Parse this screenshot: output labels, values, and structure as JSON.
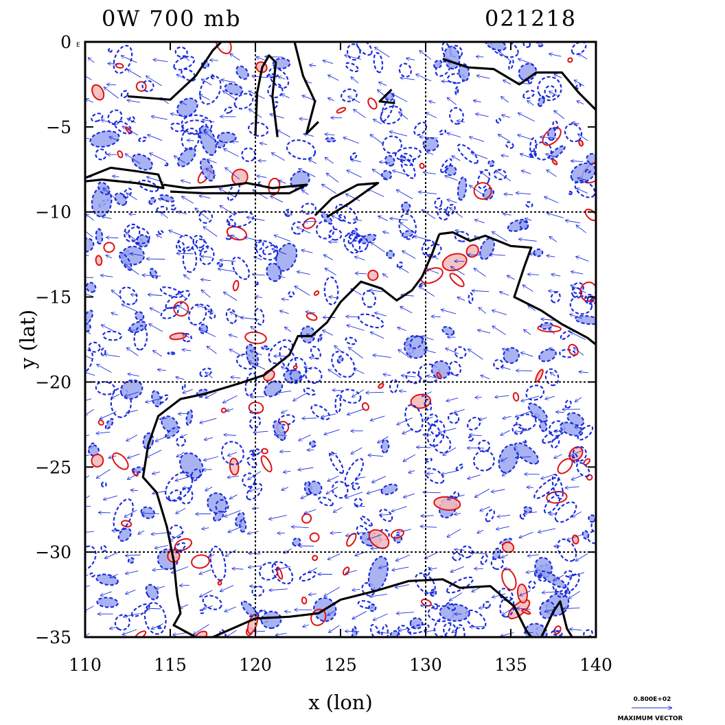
{
  "chart_data": {
    "type": "scatter",
    "title_left": "0W 700 mb",
    "title_right": "021218",
    "xlabel": "x (lon)",
    "ylabel": "y (lat)",
    "xlim": [
      110,
      140
    ],
    "ylim": [
      -35,
      0
    ],
    "x_ticks": [
      "110",
      "115",
      "120",
      "125",
      "130",
      "135",
      "140"
    ],
    "y_ticks": [
      "0",
      "−5",
      "−10",
      "−15",
      "−20",
      "−25",
      "−30",
      "−35"
    ],
    "corner_label": "E",
    "gridlines_x": [
      120,
      130
    ],
    "gridlines_y": [
      -10,
      -20,
      -30
    ],
    "legend": {
      "value": "0.800E+02",
      "caption": "MAXIMUM VECTOR"
    },
    "colors": {
      "coast": "#000000",
      "negative_contour": "#1a2bdb",
      "negative_fill": "#9aa6ee",
      "positive_contour": "#e01010",
      "positive_fill": "#f4b8b8",
      "vector": "#1a2bdb"
    },
    "coastline": [
      [
        [
          110,
          -8.0
        ],
        [
          111.5,
          -7.4
        ],
        [
          113,
          -7.6
        ],
        [
          114.3,
          -7.8
        ],
        [
          114.6,
          -8.6
        ],
        [
          113,
          -8.3
        ],
        [
          111,
          -8.1
        ],
        [
          110,
          -8.2
        ]
      ],
      [
        [
          114.6,
          -8.4
        ],
        [
          116,
          -8.6
        ],
        [
          118,
          -8.5
        ],
        [
          119.5,
          -8.3
        ],
        [
          121,
          -8.6
        ],
        [
          123,
          -8.4
        ],
        [
          122,
          -8.9
        ],
        [
          120,
          -8.9
        ],
        [
          117,
          -8.9
        ],
        [
          115,
          -8.8
        ]
      ],
      [
        [
          123.5,
          -10.2
        ],
        [
          124.5,
          -9.2
        ],
        [
          126,
          -8.4
        ],
        [
          127.2,
          -8.3
        ],
        [
          125.5,
          -9.5
        ],
        [
          124.2,
          -10.3
        ]
      ],
      [
        [
          112.5,
          -3.2
        ],
        [
          115,
          -3.4
        ],
        [
          116.5,
          -2.0
        ],
        [
          117.5,
          -0.5
        ],
        [
          118,
          0.0
        ]
      ],
      [
        [
          120.0,
          -5.5
        ],
        [
          120.1,
          -3.0
        ],
        [
          120.4,
          -1.5
        ],
        [
          120.8,
          -0.8
        ],
        [
          121.2,
          -1.2
        ],
        [
          121.0,
          -3.2
        ],
        [
          121.3,
          -5.6
        ]
      ],
      [
        [
          122.3,
          0.0
        ],
        [
          122.8,
          -2.0
        ],
        [
          123.5,
          -3.5
        ],
        [
          123.0,
          -5.4
        ],
        [
          123.7,
          -4.7
        ]
      ],
      [
        [
          128.0,
          -2.8
        ],
        [
          127.3,
          -3.5
        ],
        [
          128.2,
          -3.6
        ]
      ],
      [
        [
          131,
          -1.0
        ],
        [
          132.5,
          -1.5
        ],
        [
          134,
          -1.6
        ],
        [
          135.5,
          -2.5
        ],
        [
          136.5,
          -1.8
        ],
        [
          138,
          -1.8
        ],
        [
          139,
          -3.0
        ],
        [
          140,
          -4.0
        ]
      ],
      [
        [
          130.8,
          -11.3
        ],
        [
          131.6,
          -11.2
        ],
        [
          132.6,
          -11.7
        ],
        [
          133.5,
          -11.4
        ],
        [
          135,
          -12.0
        ],
        [
          136.2,
          -12.1
        ],
        [
          135.8,
          -13.2
        ],
        [
          135.2,
          -15.0
        ],
        [
          136.8,
          -15.8
        ],
        [
          138,
          -16.6
        ],
        [
          139.5,
          -17.4
        ],
        [
          140,
          -17.8
        ]
      ],
      [
        [
          129.2,
          -14.6
        ],
        [
          129.8,
          -13.8
        ],
        [
          130.4,
          -12.4
        ],
        [
          130.8,
          -11.3
        ]
      ],
      [
        [
          129.2,
          -14.6
        ],
        [
          128.3,
          -15.2
        ],
        [
          127.4,
          -14.5
        ],
        [
          126.2,
          -14.1
        ],
        [
          125,
          -15.3
        ],
        [
          124.2,
          -16.5
        ],
        [
          123.3,
          -17.3
        ],
        [
          122.5,
          -17.3
        ],
        [
          122,
          -18.4
        ],
        [
          120.5,
          -19.6
        ],
        [
          119,
          -20.1
        ],
        [
          117,
          -20.7
        ],
        [
          115.6,
          -21.0
        ],
        [
          114.3,
          -22.0
        ],
        [
          113.7,
          -23.7
        ],
        [
          113.4,
          -25.6
        ],
        [
          114.2,
          -26.5
        ],
        [
          114.8,
          -28.5
        ],
        [
          115.2,
          -30.5
        ],
        [
          115.4,
          -32.5
        ],
        [
          115.6,
          -33.6
        ],
        [
          115.2,
          -34.3
        ],
        [
          116.5,
          -35.0
        ]
      ],
      [
        [
          117.5,
          -35.0
        ],
        [
          120,
          -33.9
        ],
        [
          122,
          -33.8
        ],
        [
          123.7,
          -33.6
        ],
        [
          125,
          -32.8
        ],
        [
          127,
          -32.3
        ],
        [
          129,
          -31.7
        ],
        [
          131,
          -31.6
        ],
        [
          132,
          -32.1
        ],
        [
          133.8,
          -32.0
        ],
        [
          135.2,
          -33.2
        ],
        [
          135.9,
          -34.6
        ],
        [
          136.2,
          -35.0
        ]
      ],
      [
        [
          136.8,
          -35.0
        ],
        [
          137.5,
          -33.5
        ],
        [
          137.9,
          -32.9
        ],
        [
          138.3,
          -34.5
        ],
        [
          138.6,
          -35.0
        ]
      ]
    ]
  }
}
